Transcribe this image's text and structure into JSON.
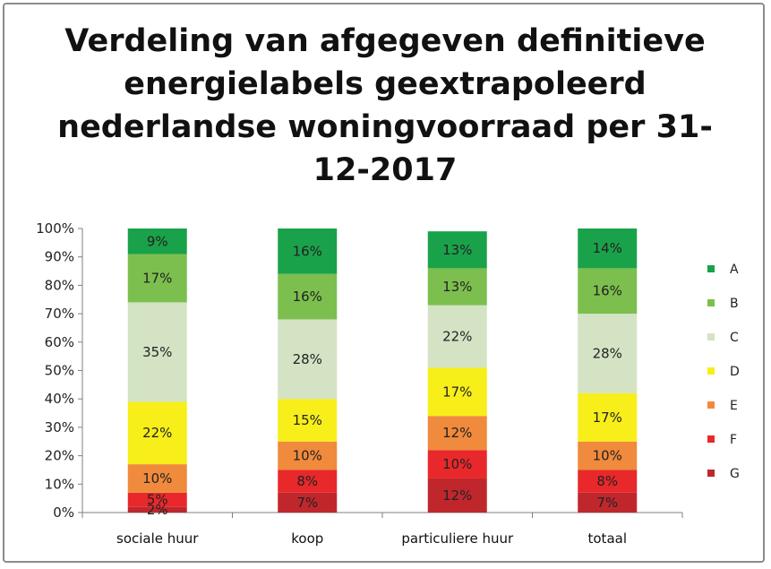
{
  "chart_data": {
    "type": "bar",
    "stacked": true,
    "title_lines": [
      "Verdeling van afgegeven definitieve",
      "energielabels geextrapoleerd",
      "nederlandse woningvoorraad per 31-",
      "12-2017"
    ],
    "categories": [
      "sociale huur",
      "koop",
      "particuliere huur",
      "totaal"
    ],
    "series": [
      {
        "name": "G",
        "color": "#c0272d",
        "values": [
          2,
          7,
          12,
          7
        ],
        "labels": [
          "2%",
          "7%",
          "12%",
          "7%"
        ]
      },
      {
        "name": "F",
        "color": "#e8282b",
        "values": [
          5,
          8,
          10,
          8
        ],
        "labels": [
          "5%",
          "8%",
          "10%",
          "8%"
        ]
      },
      {
        "name": "E",
        "color": "#f08a3c",
        "values": [
          10,
          10,
          12,
          10
        ],
        "labels": [
          "10%",
          "10%",
          "12%",
          "10%"
        ]
      },
      {
        "name": "D",
        "color": "#f7ee1a",
        "values": [
          22,
          15,
          17,
          17
        ],
        "labels": [
          "22%",
          "15%",
          "17%",
          "17%"
        ]
      },
      {
        "name": "C",
        "color": "#d3e3c4",
        "values": [
          35,
          28,
          22,
          28
        ],
        "labels": [
          "35%",
          "28%",
          "22%",
          "28%"
        ]
      },
      {
        "name": "B",
        "color": "#7cbf4e",
        "values": [
          17,
          16,
          13,
          16
        ],
        "labels": [
          "17%",
          "16%",
          "13%",
          "16%"
        ]
      },
      {
        "name": "A",
        "color": "#1aa24a",
        "values": [
          9,
          16,
          13,
          14
        ],
        "labels": [
          "9%",
          "16%",
          "13%",
          "14%"
        ]
      }
    ],
    "legend_order": [
      "A",
      "B",
      "C",
      "D",
      "E",
      "F",
      "G"
    ],
    "ylim": [
      0,
      100
    ],
    "yticks": [
      "0%",
      "10%",
      "20%",
      "30%",
      "40%",
      "50%",
      "60%",
      "70%",
      "80%",
      "90%",
      "100%"
    ],
    "legend_position": "right",
    "grid": false
  }
}
